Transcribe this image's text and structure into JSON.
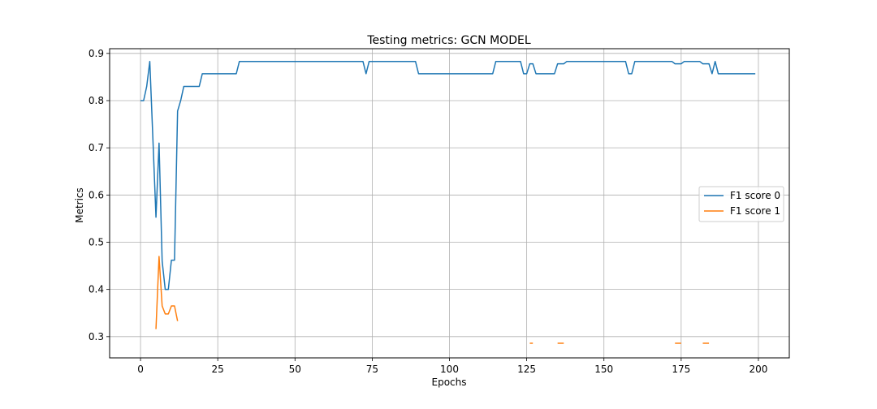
{
  "chart_data": {
    "type": "line",
    "title": "Testing metrics: GCN MODEL",
    "xlabel": "Epochs",
    "ylabel": "Metrics",
    "xlim": [
      -10,
      210
    ],
    "ylim": [
      0.255,
      0.91
    ],
    "xticks": [
      0,
      25,
      50,
      75,
      100,
      125,
      150,
      175,
      200
    ],
    "yticks": [
      0.3,
      0.4,
      0.5,
      0.6,
      0.7,
      0.8,
      0.9
    ],
    "ytick_labels": [
      "0.3",
      "0.4",
      "0.5",
      "0.6",
      "0.7",
      "0.8",
      "0.9"
    ],
    "grid": true,
    "legend_position": "center-right",
    "series": [
      {
        "name": "F1 score 0",
        "color": "#1f77b4",
        "segments": [
          [
            [
              0,
              0.8
            ],
            [
              1,
              0.8
            ],
            [
              2,
              0.83
            ],
            [
              3,
              0.883
            ],
            [
              4,
              0.72
            ],
            [
              5,
              0.553
            ],
            [
              6,
              0.71
            ],
            [
              7,
              0.46
            ],
            [
              8,
              0.4
            ],
            [
              9,
              0.4
            ],
            [
              10,
              0.462
            ],
            [
              11,
              0.462
            ],
            [
              12,
              0.778
            ],
            [
              13,
              0.8
            ],
            [
              14,
              0.83
            ],
            [
              15,
              0.83
            ],
            [
              16,
              0.83
            ],
            [
              17,
              0.83
            ],
            [
              18,
              0.83
            ],
            [
              19,
              0.83
            ],
            [
              20,
              0.857
            ],
            [
              31,
              0.857
            ],
            [
              32,
              0.883
            ],
            [
              72,
              0.883
            ],
            [
              73,
              0.857
            ],
            [
              74,
              0.883
            ],
            [
              89,
              0.883
            ],
            [
              90,
              0.857
            ],
            [
              114,
              0.857
            ],
            [
              115,
              0.883
            ],
            [
              123,
              0.883
            ],
            [
              124,
              0.857
            ],
            [
              125,
              0.857
            ],
            [
              126,
              0.878
            ],
            [
              127,
              0.878
            ],
            [
              128,
              0.857
            ],
            [
              134,
              0.857
            ],
            [
              135,
              0.878
            ],
            [
              137,
              0.878
            ],
            [
              138,
              0.883
            ],
            [
              157,
              0.883
            ],
            [
              158,
              0.857
            ],
            [
              159,
              0.857
            ],
            [
              160,
              0.883
            ],
            [
              172,
              0.883
            ],
            [
              173,
              0.878
            ],
            [
              175,
              0.878
            ],
            [
              176,
              0.883
            ],
            [
              181,
              0.883
            ],
            [
              182,
              0.878
            ],
            [
              184,
              0.878
            ],
            [
              185,
              0.857
            ],
            [
              186,
              0.883
            ],
            [
              187,
              0.857
            ],
            [
              199,
              0.857
            ]
          ]
        ]
      },
      {
        "name": "F1 score 1",
        "color": "#ff7f0e",
        "segments": [
          [
            [
              5,
              0.316
            ],
            [
              6,
              0.47
            ],
            [
              7,
              0.365
            ],
            [
              8,
              0.348
            ],
            [
              9,
              0.348
            ],
            [
              10,
              0.365
            ],
            [
              11,
              0.365
            ],
            [
              12,
              0.333
            ]
          ],
          [
            [
              126,
              0.286
            ],
            [
              127,
              0.286
            ]
          ],
          [
            [
              135,
              0.286
            ],
            [
              137,
              0.286
            ]
          ],
          [
            [
              173,
              0.286
            ],
            [
              175,
              0.286
            ]
          ],
          [
            [
              182,
              0.286
            ],
            [
              184,
              0.286
            ]
          ]
        ]
      }
    ]
  }
}
